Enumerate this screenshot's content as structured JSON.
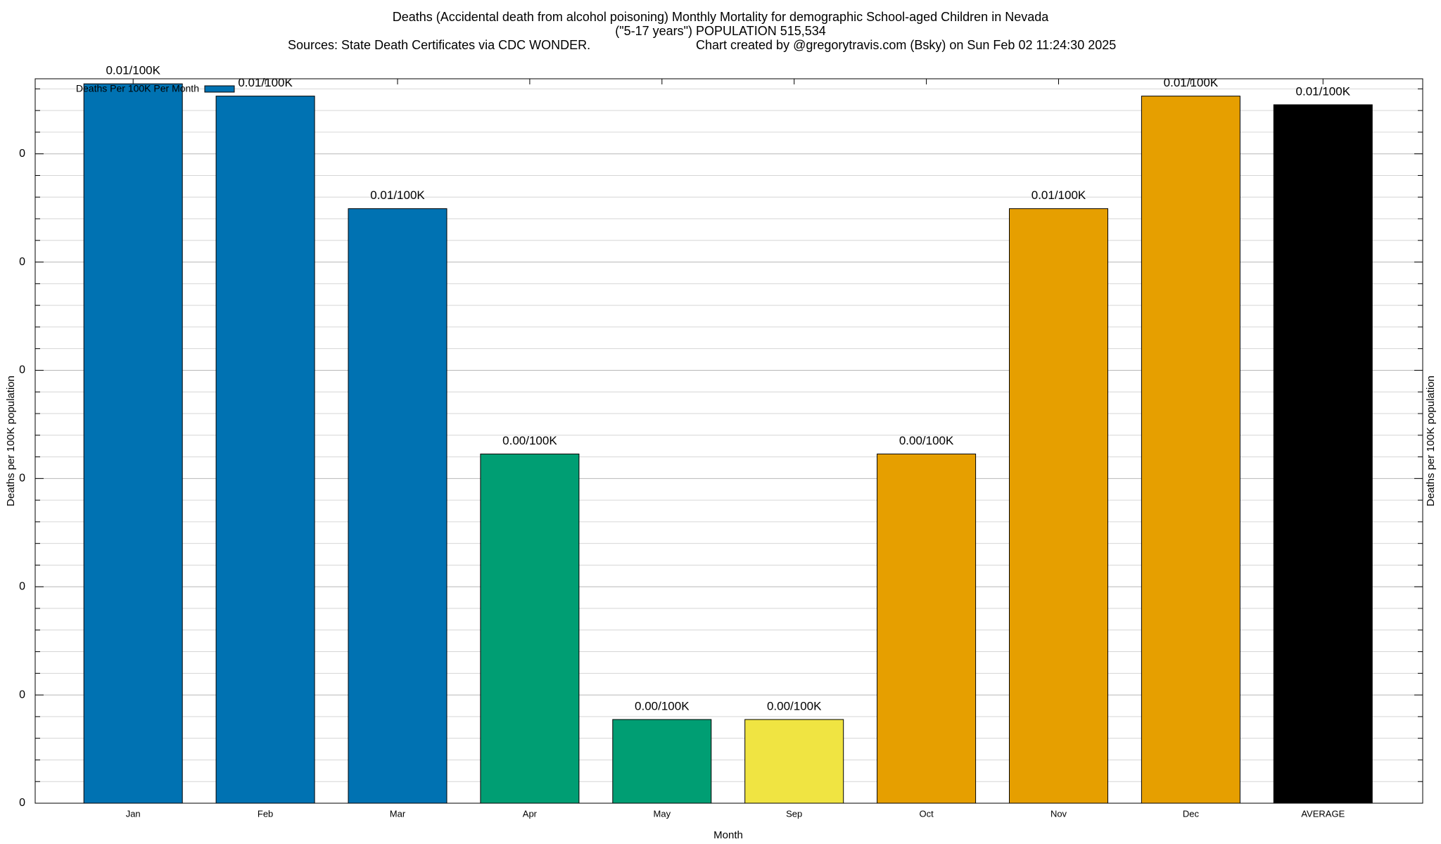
{
  "chart_data": {
    "type": "bar",
    "title": "Deaths (Accidental death from alcohol poisoning) Monthly Mortality for demographic School-aged Children in Nevada",
    "subtitle": "(\"5-17 years\") POPULATION 515,534",
    "sources": "Sources: State Death Certificates via CDC WONDER.",
    "credit": "Chart created by @gregorytravis.com (Bsky) on Sun Feb 02 11:24:30 2025",
    "x_label": "Month",
    "y_label": "Deaths per 100K population",
    "y2_label": "Deaths per 100K population",
    "legend": "Deaths Per 100K Per Month",
    "legend_color": "#0072b2",
    "legend_position": "top-left",
    "categories": [
      "Jan",
      "Feb",
      "Mar",
      "Apr",
      "May",
      "Sep",
      "Oct",
      "Nov",
      "Dec",
      "AVERAGE"
    ],
    "values": [
      0.00997,
      0.0098,
      0.00824,
      0.00484,
      0.00116,
      0.00116,
      0.00484,
      0.00824,
      0.0098,
      0.00968
    ],
    "value_labels": [
      "0.01/100K",
      "0.01/100K",
      "0.01/100K",
      "0.00/100K",
      "0.00/100K",
      "0.00/100K",
      "0.00/100K",
      "0.01/100K",
      "0.01/100K",
      "0.01/100K"
    ],
    "colors": [
      "#0072b2",
      "#0072b2",
      "#0072b2",
      "#009e73",
      "#009e73",
      "#f0e442",
      "#e69f00",
      "#e69f00",
      "#e69f00",
      "#000000"
    ],
    "ylim": [
      0,
      0.01004
    ],
    "yticks": [
      0,
      {
        "value": 0.0015,
        "label": "0"
      },
      {
        "value": 0.003,
        "label": "0"
      },
      {
        "value": 0.0045,
        "label": "0"
      },
      {
        "value": 0.006,
        "label": "0"
      },
      {
        "value": 0.0075,
        "label": "0"
      },
      {
        "value": 0.009,
        "label": "0"
      }
    ],
    "grid": true
  }
}
